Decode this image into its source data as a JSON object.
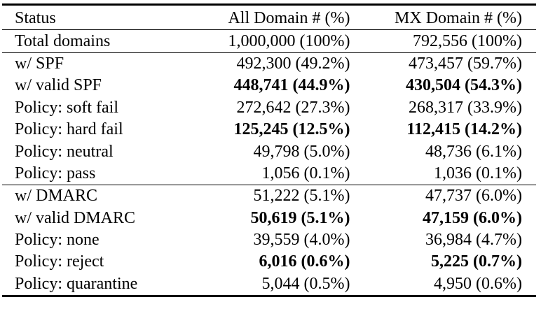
{
  "header": {
    "status": "Status",
    "all": "All Domain # (%)",
    "mx": "MX Domain # (%)"
  },
  "rows": [
    {
      "status": "Total domains",
      "all": "1,000,000 (100%)",
      "mx": "792,556 (100%)",
      "bold": false,
      "group_end": true
    },
    {
      "status": "w/ SPF",
      "all": "492,300 (49.2%)",
      "mx": "473,457 (59.7%)",
      "bold": false,
      "group_end": false
    },
    {
      "status": "w/ valid SPF",
      "all": "448,741 (44.9%)",
      "mx": "430,504 (54.3%)",
      "bold": true,
      "group_end": false
    },
    {
      "status": "Policy: soft fail",
      "all": "272,642 (27.3%)",
      "mx": "268,317 (33.9%)",
      "bold": false,
      "group_end": false
    },
    {
      "status": "Policy: hard fail",
      "all": "125,245 (12.5%)",
      "mx": "112,415 (14.2%)",
      "bold": true,
      "group_end": false
    },
    {
      "status": "Policy: neutral",
      "all": "49,798 (5.0%)",
      "mx": "48,736 (6.1%)",
      "bold": false,
      "group_end": false
    },
    {
      "status": "Policy: pass",
      "all": "1,056 (0.1%)",
      "mx": "1,036 (0.1%)",
      "bold": false,
      "group_end": true
    },
    {
      "status": "w/ DMARC",
      "all": "51,222 (5.1%)",
      "mx": "47,737 (6.0%)",
      "bold": false,
      "group_end": false
    },
    {
      "status": "w/ valid DMARC",
      "all": "50,619 (5.1%)",
      "mx": "47,159 (6.0%)",
      "bold": true,
      "group_end": false
    },
    {
      "status": "Policy: none",
      "all": "39,559 (4.0%)",
      "mx": "36,984 (4.7%)",
      "bold": false,
      "group_end": false
    },
    {
      "status": "Policy: reject",
      "all": "6,016 (0.6%)",
      "mx": "5,225 (0.7%)",
      "bold": true,
      "group_end": false
    },
    {
      "status": "Policy: quarantine",
      "all": "5,044 (0.5%)",
      "mx": "4,950 (0.6%)",
      "bold": false,
      "group_end": false
    }
  ]
}
